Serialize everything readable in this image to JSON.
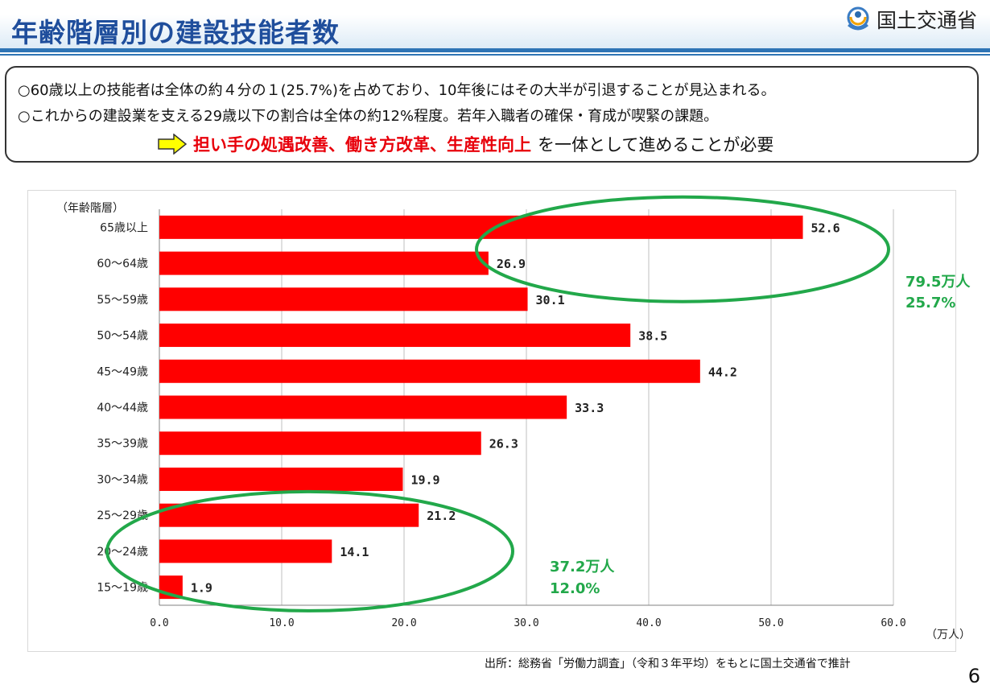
{
  "header": {
    "title": "年齢階層別の建設技能者数",
    "logo_text": "国土交通省",
    "logo_icon": "mlit-logo-icon"
  },
  "summary": {
    "line1": "○60歳以上の技能者は全体の約４分の１(25.7%)を占めており、10年後にはその大半が引退することが見込まれる。",
    "line2": "○これからの建設業を支える29歳以下の割合は全体の約12%程度。若年入職者の確保・育成が喫緊の課題。",
    "conclusion_emphasis": "担い手の処遇改善、働き方改革、生産性向上",
    "conclusion_rest": "を一体として進めることが必要",
    "arrow_icon": "yellow-right-arrow-icon"
  },
  "chart_data": {
    "type": "bar",
    "orientation": "horizontal",
    "categories": [
      "65歳以上",
      "60～64歳",
      "55～59歳",
      "50～54歳",
      "45～49歳",
      "40～44歳",
      "35～39歳",
      "30～34歳",
      "25～29歳",
      "20～24歳",
      "15～19歳"
    ],
    "values": [
      52.6,
      26.9,
      30.1,
      38.5,
      44.2,
      33.3,
      26.3,
      19.9,
      21.2,
      14.1,
      1.9
    ],
    "value_labels": [
      "52.6",
      "26.9",
      "30.1",
      "38.5",
      "44.2",
      "33.3",
      "26.3",
      "19.9",
      "21.2",
      "14.1",
      "1.9"
    ],
    "x_ticks": [
      "0.0",
      "10.0",
      "20.0",
      "30.0",
      "40.0",
      "50.0",
      "60.0"
    ],
    "xlim": [
      0,
      60
    ],
    "ylabel": "（年齢階層）",
    "xlabel": "（万人）",
    "bar_color": "#ff0000",
    "highlight_color": "#22a84a",
    "annotations": [
      {
        "group": [
          "65歳以上",
          "60～64歳"
        ],
        "line1": "79.5万人",
        "line2": "25.7%"
      },
      {
        "group": [
          "25～29歳",
          "20～24歳",
          "15～19歳"
        ],
        "line1": "37.2万人",
        "line2": "12.0%"
      }
    ]
  },
  "footer": {
    "source": "出所：総務省「労働力調査」（令和３年平均）をもとに国土交通省で推計",
    "page_number": "6"
  }
}
